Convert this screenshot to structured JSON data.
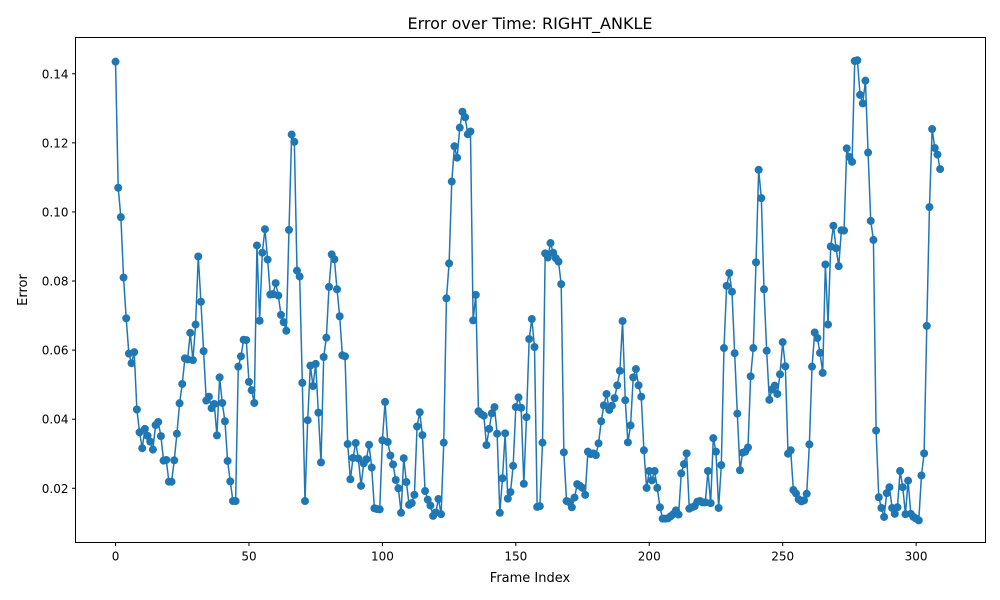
{
  "chart_data": {
    "type": "line",
    "title": "Error over Time: RIGHT_ANKLE",
    "xlabel": "Frame Index",
    "ylabel": "Error",
    "xlim": [
      -15,
      326
    ],
    "ylim": [
      0.0043,
      0.1505
    ],
    "xticks": [
      0,
      50,
      100,
      150,
      200,
      250,
      300
    ],
    "xtick_labels": [
      "0",
      "50",
      "100",
      "150",
      "200",
      "250",
      "300"
    ],
    "yticks": [
      0.02,
      0.04,
      0.06,
      0.08,
      0.1,
      0.12,
      0.14
    ],
    "ytick_labels": [
      "0.02",
      "0.04",
      "0.06",
      "0.08",
      "0.10",
      "0.12",
      "0.14"
    ],
    "grid": false,
    "marker": "circle",
    "series": [
      {
        "color": "#1f77b4",
        "x_start": 0,
        "values": [
          0.1435,
          0.107,
          0.0985,
          0.081,
          0.0692,
          0.059,
          0.0562,
          0.0594,
          0.0428,
          0.0362,
          0.0316,
          0.0372,
          0.0352,
          0.0335,
          0.0312,
          0.0383,
          0.0392,
          0.0351,
          0.028,
          0.0282,
          0.0219,
          0.0219,
          0.0281,
          0.0358,
          0.0446,
          0.0502,
          0.0576,
          0.0573,
          0.065,
          0.0571,
          0.0674,
          0.0871,
          0.074,
          0.0597,
          0.0454,
          0.0465,
          0.0432,
          0.0444,
          0.0353,
          0.0521,
          0.0447,
          0.0394,
          0.0279,
          0.022,
          0.0163,
          0.0163,
          0.0552,
          0.0582,
          0.063,
          0.0629,
          0.0508,
          0.0484,
          0.0447,
          0.0903,
          0.0685,
          0.0882,
          0.095,
          0.0862,
          0.0761,
          0.0762,
          0.0794,
          0.0758,
          0.0702,
          0.0681,
          0.0656,
          0.0948,
          0.1224,
          0.1203,
          0.083,
          0.0813,
          0.0505,
          0.0163,
          0.0397,
          0.0555,
          0.0496,
          0.056,
          0.0419,
          0.0275,
          0.058,
          0.0636,
          0.0783,
          0.0877,
          0.0863,
          0.0776,
          0.0698,
          0.0585,
          0.0582,
          0.0328,
          0.0226,
          0.0288,
          0.0331,
          0.0286,
          0.0207,
          0.0272,
          0.0284,
          0.0326,
          0.026,
          0.0142,
          0.014,
          0.0139,
          0.0339,
          0.045,
          0.0334,
          0.0295,
          0.0269,
          0.0224,
          0.02,
          0.0129,
          0.0287,
          0.0218,
          0.0152,
          0.0157,
          0.0181,
          0.0379,
          0.042,
          0.0354,
          0.0192,
          0.0167,
          0.015,
          0.012,
          0.013,
          0.0169,
          0.0125,
          0.0332,
          0.075,
          0.0851,
          0.1088,
          0.119,
          0.1157,
          0.1244,
          0.129,
          0.1274,
          0.1225,
          0.1233,
          0.0686,
          0.076,
          0.0423,
          0.0415,
          0.041,
          0.0325,
          0.0372,
          0.0417,
          0.0435,
          0.0358,
          0.0129,
          0.0229,
          0.0359,
          0.017,
          0.0189,
          0.0265,
          0.0435,
          0.0463,
          0.0433,
          0.0213,
          0.0406,
          0.0632,
          0.069,
          0.0609,
          0.0146,
          0.0148,
          0.0332,
          0.088,
          0.0868,
          0.091,
          0.0882,
          0.0866,
          0.0856,
          0.0791,
          0.0304,
          0.0163,
          0.016,
          0.0145,
          0.0173,
          0.0212,
          0.0207,
          0.0201,
          0.0181,
          0.0306,
          0.0299,
          0.0301,
          0.0296,
          0.033,
          0.0394,
          0.044,
          0.0473,
          0.0427,
          0.0439,
          0.0461,
          0.0498,
          0.054,
          0.0684,
          0.0455,
          0.0333,
          0.0382,
          0.0521,
          0.0545,
          0.0498,
          0.0465,
          0.031,
          0.0201,
          0.025,
          0.0223,
          0.025,
          0.0201,
          0.0145,
          0.0112,
          0.0112,
          0.0113,
          0.0119,
          0.0125,
          0.0136,
          0.0124,
          0.0243,
          0.027,
          0.0301,
          0.0141,
          0.0145,
          0.0148,
          0.0161,
          0.0163,
          0.0159,
          0.0159,
          0.025,
          0.0157,
          0.0345,
          0.0306,
          0.0143,
          0.0267,
          0.0606,
          0.0786,
          0.0823,
          0.0769,
          0.0591,
          0.0416,
          0.0252,
          0.0303,
          0.0306,
          0.0318,
          0.0524,
          0.0606,
          0.0854,
          0.1122,
          0.104,
          0.0776,
          0.0598,
          0.0456,
          0.0486,
          0.0497,
          0.0473,
          0.053,
          0.0623,
          0.0553,
          0.03,
          0.031,
          0.0195,
          0.0185,
          0.0168,
          0.0162,
          0.0165,
          0.0184,
          0.0327,
          0.0552,
          0.0651,
          0.0635,
          0.0592,
          0.0534,
          0.0848,
          0.0674,
          0.09,
          0.096,
          0.0895,
          0.0843,
          0.0947,
          0.0946,
          0.1184,
          0.1159,
          0.1145,
          0.1437,
          0.1439,
          0.1339,
          0.1314,
          0.138,
          0.1172,
          0.0974,
          0.0919,
          0.0367,
          0.0174,
          0.0143,
          0.0117,
          0.0186,
          0.0203,
          0.0143,
          0.0126,
          0.0145,
          0.025,
          0.0203,
          0.0125,
          0.0222,
          0.0126,
          0.0117,
          0.0112,
          0.0107,
          0.0237,
          0.0301,
          0.067,
          0.1014,
          0.124,
          0.1185,
          0.1166,
          0.1124
        ]
      }
    ]
  }
}
